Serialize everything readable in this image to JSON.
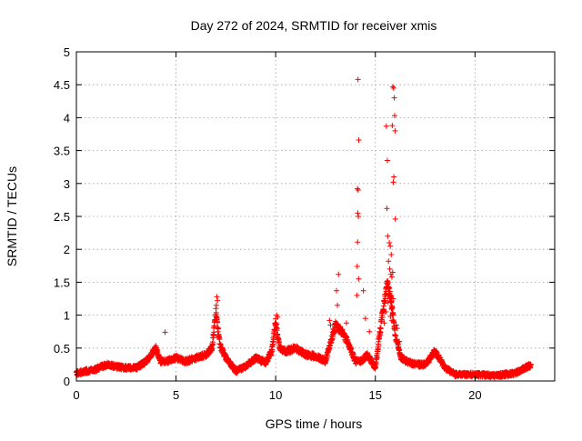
{
  "chart_data": {
    "type": "scatter",
    "title": "Day 272 of 2024, SRMTID for receiver xmis",
    "xlabel": "GPS time / hours",
    "ylabel": "SRMTID / TECUs",
    "xlim": [
      0,
      24
    ],
    "ylim": [
      0,
      5
    ],
    "x_ticks": [
      0,
      5,
      10,
      15,
      20
    ],
    "y_ticks": [
      0,
      0.5,
      1,
      1.5,
      2,
      2.5,
      3,
      3.5,
      4,
      4.5,
      5
    ],
    "x_tick_labels": [
      "0",
      "5",
      "10",
      "15",
      "20"
    ],
    "y_tick_labels": [
      "0",
      "0.5",
      "1",
      "1.5",
      "2",
      "2.5",
      "3",
      "3.5",
      "4",
      "4.5",
      "5"
    ],
    "grid": true,
    "marker": "+",
    "series": [
      {
        "name": "SRMTID",
        "color": "#ff0000",
        "profile_x": [
          0,
          0.5,
          1.0,
          1.5,
          2.0,
          2.5,
          3.0,
          3.5,
          3.8,
          4.0,
          4.2,
          4.5,
          5.0,
          5.5,
          6.0,
          6.5,
          6.8,
          7.0,
          7.2,
          7.5,
          8.0,
          8.5,
          9.0,
          9.5,
          9.8,
          10.0,
          10.2,
          10.5,
          11.0,
          11.5,
          12.0,
          12.5,
          12.8,
          13.0,
          13.3,
          13.6,
          14.0,
          14.3,
          14.6,
          15.0,
          15.3,
          15.6,
          15.8,
          16.0,
          16.3,
          16.6,
          17.0,
          17.5,
          18.0,
          18.5,
          19.0,
          20.0,
          21.0,
          22.0,
          22.8
        ],
        "profile_y": [
          0.12,
          0.15,
          0.18,
          0.25,
          0.22,
          0.2,
          0.2,
          0.3,
          0.42,
          0.5,
          0.3,
          0.3,
          0.35,
          0.3,
          0.35,
          0.4,
          0.5,
          1.05,
          0.55,
          0.35,
          0.15,
          0.22,
          0.35,
          0.28,
          0.45,
          0.9,
          0.5,
          0.45,
          0.5,
          0.4,
          0.38,
          0.3,
          0.65,
          0.85,
          0.75,
          0.6,
          0.3,
          0.3,
          0.4,
          0.2,
          0.9,
          1.5,
          1.2,
          0.7,
          0.35,
          0.3,
          0.25,
          0.25,
          0.45,
          0.2,
          0.1,
          0.1,
          0.08,
          0.12,
          0.24
        ],
        "n_points": 2730,
        "noise": 0.05,
        "spikes": [
          {
            "x": 14.13,
            "y": 4.58
          },
          {
            "x": 14.17,
            "y": 3.66
          },
          {
            "x": 14.1,
            "y": 2.92
          },
          {
            "x": 14.14,
            "y": 2.9
          },
          {
            "x": 14.12,
            "y": 2.55
          },
          {
            "x": 14.15,
            "y": 2.5
          },
          {
            "x": 14.11,
            "y": 2.11
          },
          {
            "x": 14.09,
            "y": 1.74
          },
          {
            "x": 14.16,
            "y": 1.55
          },
          {
            "x": 14.08,
            "y": 1.3
          },
          {
            "x": 13.15,
            "y": 1.62
          },
          {
            "x": 13.05,
            "y": 1.37
          },
          {
            "x": 13.1,
            "y": 1.15
          },
          {
            "x": 14.4,
            "y": 1.37
          },
          {
            "x": 14.5,
            "y": 0.95
          },
          {
            "x": 15.88,
            "y": 4.47
          },
          {
            "x": 15.92,
            "y": 4.45
          },
          {
            "x": 15.95,
            "y": 4.3
          },
          {
            "x": 15.85,
            "y": 3.88
          },
          {
            "x": 15.55,
            "y": 3.87
          },
          {
            "x": 15.97,
            "y": 4.03
          },
          {
            "x": 15.99,
            "y": 3.8
          },
          {
            "x": 15.6,
            "y": 3.35
          },
          {
            "x": 15.9,
            "y": 3.02
          },
          {
            "x": 15.93,
            "y": 3.1
          },
          {
            "x": 15.58,
            "y": 2.62
          },
          {
            "x": 16.0,
            "y": 2.46
          },
          {
            "x": 15.62,
            "y": 2.2
          },
          {
            "x": 15.7,
            "y": 2.1
          },
          {
            "x": 15.75,
            "y": 2.05
          },
          {
            "x": 15.8,
            "y": 1.92
          },
          {
            "x": 15.66,
            "y": 1.82
          },
          {
            "x": 15.72,
            "y": 1.7
          },
          {
            "x": 15.78,
            "y": 1.62
          },
          {
            "x": 15.83,
            "y": 1.58
          },
          {
            "x": 15.87,
            "y": 1.65
          },
          {
            "x": 15.68,
            "y": 1.4
          },
          {
            "x": 15.74,
            "y": 1.3
          },
          {
            "x": 15.64,
            "y": 1.2
          },
          {
            "x": 15.81,
            "y": 1.1
          },
          {
            "x": 15.89,
            "y": 1.25
          },
          {
            "x": 15.76,
            "y": 0.98
          },
          {
            "x": 15.84,
            "y": 0.92
          },
          {
            "x": 15.53,
            "y": 1.05
          },
          {
            "x": 16.05,
            "y": 0.85
          },
          {
            "x": 16.1,
            "y": 0.8
          },
          {
            "x": 16.2,
            "y": 0.6
          },
          {
            "x": 15.45,
            "y": 0.88
          },
          {
            "x": 7.05,
            "y": 1.28
          },
          {
            "x": 7.08,
            "y": 1.22
          },
          {
            "x": 7.02,
            "y": 1.15
          },
          {
            "x": 10.05,
            "y": 1.0
          },
          {
            "x": 10.1,
            "y": 0.97
          },
          {
            "x": 4.45,
            "y": 0.74
          },
          {
            "x": 12.7,
            "y": 0.92
          },
          {
            "x": 12.75,
            "y": 0.85
          },
          {
            "x": 13.55,
            "y": 0.88
          },
          {
            "x": 14.7,
            "y": 0.75
          }
        ]
      }
    ]
  }
}
